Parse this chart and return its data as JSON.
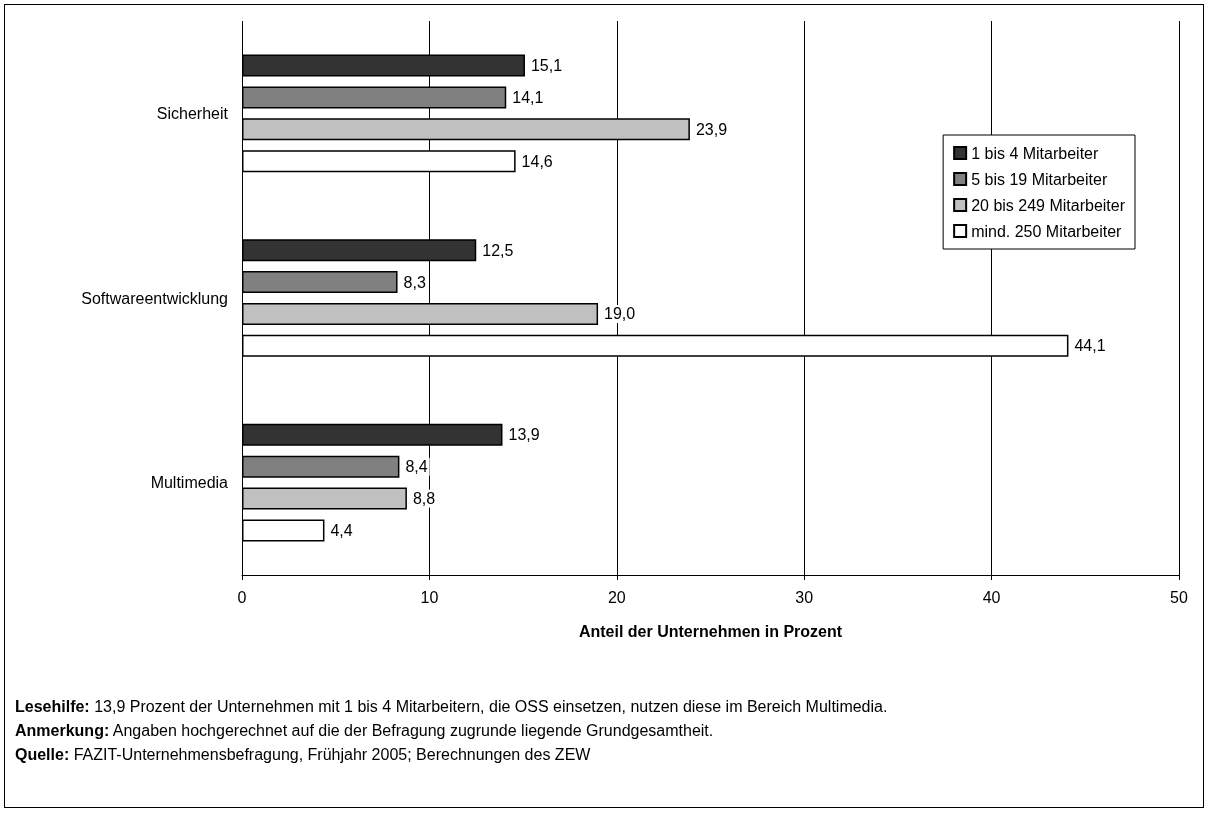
{
  "chart_data": {
    "type": "bar",
    "orientation": "horizontal",
    "xlabel": "Anteil der Unternehmen in Prozent",
    "categories": [
      "Sicherheit",
      "Softwareentwicklung",
      "Multimedia"
    ],
    "series": [
      {
        "name": "1 bis 4 Mitarbeiter",
        "color": "#333333",
        "values": [
          15.1,
          12.5,
          13.9
        ],
        "value_labels": [
          "15,1",
          "12,5",
          "13,9"
        ]
      },
      {
        "name": "5 bis 19 Mitarbeiter",
        "color": "#808080",
        "values": [
          14.1,
          8.3,
          8.4
        ],
        "value_labels": [
          "14,1",
          "8,3",
          "8,4"
        ]
      },
      {
        "name": "20 bis 249 Mitarbeiter",
        "color": "#c0c0c0",
        "values": [
          23.9,
          19.0,
          8.8
        ],
        "value_labels": [
          "23,9",
          "19,0",
          "8,8"
        ]
      },
      {
        "name": "mind. 250 Mitarbeiter",
        "color": "#ffffff",
        "values": [
          14.6,
          44.1,
          4.4
        ],
        "value_labels": [
          "14,6",
          "44,1",
          "4,4"
        ]
      }
    ],
    "xlim": [
      0,
      50
    ],
    "xticks": [
      0,
      10,
      20,
      30,
      40,
      50
    ],
    "grid": "x",
    "legend": "top right",
    "annotations": [
      "Lesehilfe: 13,9 Prozent der Unternehmen mit 1 bis 4 Mitarbeitern, die OSS einsetzen, nutzen diese im Bereich Multimedia.",
      "Anmerkung: Angaben hochgerechnet auf die der Befragung zugrunde liegende Grundgesamtheit.",
      "Quelle: FAZIT-Unternehmensbefragung, Frühjahr 2005; Berechnungen des ZEW"
    ]
  }
}
